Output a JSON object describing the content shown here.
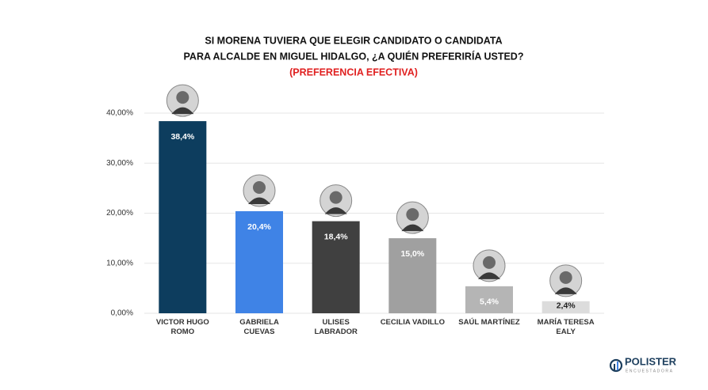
{
  "chart_data": {
    "type": "bar",
    "title": "SI MORENA TUVIERA QUE ELEGIR CANDIDATO O CANDIDATA",
    "title_line2": "PARA ALCALDE EN MIGUEL HIDALGO, ¿A QUIÉN PREFERIRÍA USTED?",
    "subtitle": "(PREFERENCIA EFECTIVA)",
    "categories": [
      "VICTOR HUGO ROMO",
      "GABRIELA CUEVAS",
      "ULISES LABRADOR",
      "CECILIA VADILLO",
      "SAÚL MARTÍNEZ",
      "MARÍA TERESA EALY"
    ],
    "values": [
      38.4,
      20.4,
      18.4,
      15.0,
      5.4,
      2.4
    ],
    "value_labels": [
      "38,4%",
      "20,4%",
      "18,4%",
      "15,0%",
      "5,4%",
      "2,4%"
    ],
    "colors": [
      "#0d3d5e",
      "#3f83e6",
      "#404040",
      "#a0a0a0",
      "#b5b5b5",
      "#dcdcdc"
    ],
    "ylim": [
      0,
      40
    ],
    "yticks": [
      {
        "value": 0,
        "label": "0,00%"
      },
      {
        "value": 10,
        "label": "10,00%"
      },
      {
        "value": 20,
        "label": "20,00%"
      },
      {
        "value": 30,
        "label": "30,00%"
      },
      {
        "value": 40,
        "label": "40,00%"
      }
    ],
    "grid": true,
    "logo": "POLISTER",
    "logo_tagline": "ENCUESTADORA"
  }
}
